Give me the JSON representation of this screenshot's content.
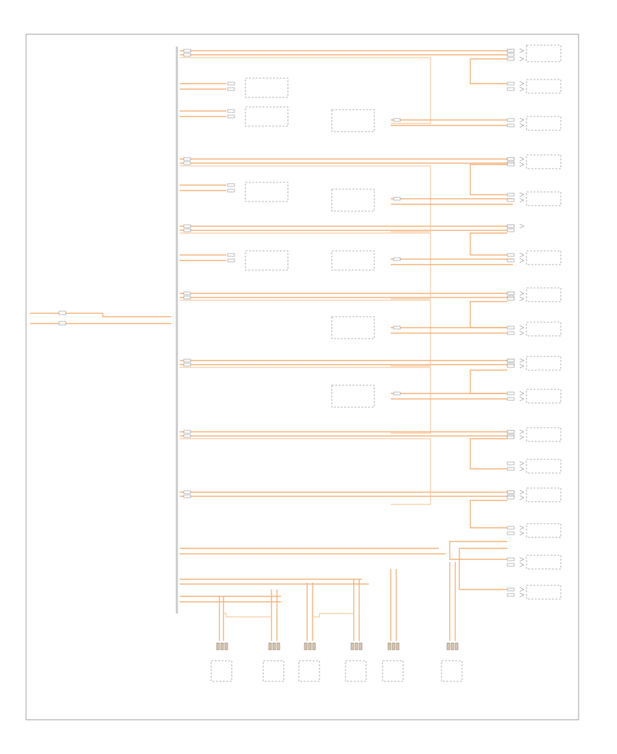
{
  "diagram": {
    "corner_label": "",
    "title": "",
    "colors": {
      "wire": "#f3b076",
      "wire_light": "#f6c9a0",
      "frame": "#9a9a9a",
      "text": "#777777"
    }
  }
}
